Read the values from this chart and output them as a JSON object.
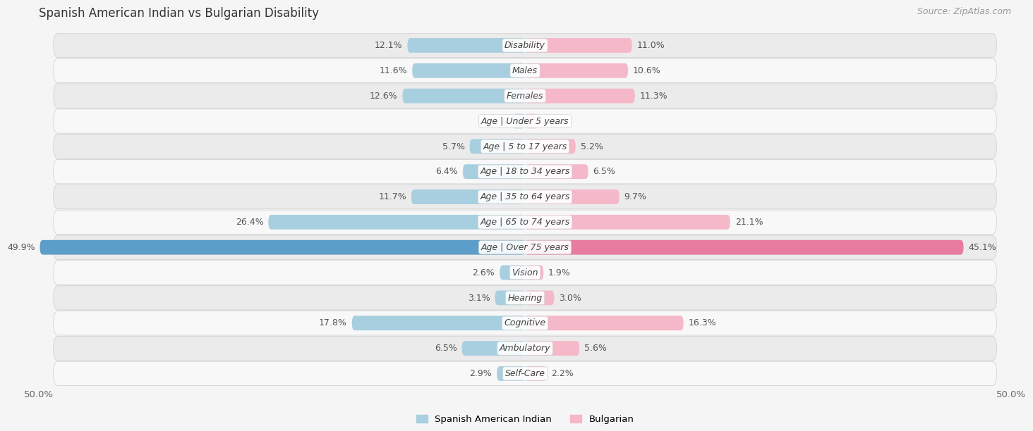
{
  "title": "Spanish American Indian vs Bulgarian Disability",
  "source": "Source: ZipAtlas.com",
  "categories": [
    "Disability",
    "Males",
    "Females",
    "Age | Under 5 years",
    "Age | 5 to 17 years",
    "Age | 18 to 34 years",
    "Age | 35 to 64 years",
    "Age | 65 to 74 years",
    "Age | Over 75 years",
    "Vision",
    "Hearing",
    "Cognitive",
    "Ambulatory",
    "Self-Care"
  ],
  "left_values": [
    12.1,
    11.6,
    12.6,
    1.3,
    5.7,
    6.4,
    11.7,
    26.4,
    49.9,
    2.6,
    3.1,
    17.8,
    6.5,
    2.9
  ],
  "right_values": [
    11.0,
    10.6,
    11.3,
    1.3,
    5.2,
    6.5,
    9.7,
    21.1,
    45.1,
    1.9,
    3.0,
    16.3,
    5.6,
    2.2
  ],
  "left_color_normal": "#a8cfe0",
  "left_color_full": "#5b9ec9",
  "right_color_normal": "#f5b8c8",
  "right_color_full": "#e87ca0",
  "left_label": "Spanish American Indian",
  "right_label": "Bulgarian",
  "max_value": 50.0,
  "bg_color": "#f5f5f5",
  "row_bg_even": "#ebebeb",
  "row_bg_odd": "#f8f8f8",
  "title_fontsize": 12,
  "bar_height": 0.58,
  "value_fontsize": 9,
  "category_fontsize": 9,
  "full_threshold": 40.0
}
